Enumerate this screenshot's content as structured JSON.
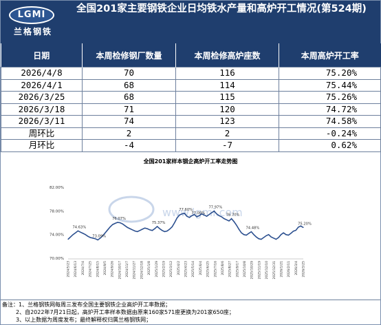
{
  "header": {
    "logo_text": "LGMI",
    "logo_cn": "兰格钢铁",
    "title": "全国201家主要钢铁企业日均铁水产量和高炉开工情况(第524期)"
  },
  "table": {
    "columns": [
      "日期",
      "本周检修钢厂数量",
      "本周检修高炉座数",
      "本周高炉开工率"
    ],
    "rows": [
      {
        "date": "2026/4/8",
        "mills": "70",
        "furnaces": "116",
        "rate": "75.20%"
      },
      {
        "date": "2026/4/1",
        "mills": "68",
        "furnaces": "114",
        "rate": "75.44%"
      },
      {
        "date": "2026/3/25",
        "mills": "68",
        "furnaces": "115",
        "rate": "75.26%"
      },
      {
        "date": "2026/3/18",
        "mills": "71",
        "furnaces": "120",
        "rate": "74.72%"
      },
      {
        "date": "2026/3/11",
        "mills": "74",
        "furnaces": "123",
        "rate": "74.58%"
      }
    ],
    "wow": {
      "label": "周环比",
      "mills": "2",
      "furnaces": "2",
      "rate": "-0.24%"
    },
    "mom": {
      "label": "月环比",
      "mills": "-4",
      "furnaces": "-7",
      "rate": "0.62%"
    }
  },
  "colors": {
    "header_bg": "#1f3e6e",
    "line": "#2b4f8f",
    "up": "#e0141b",
    "down": "#1aa03a"
  },
  "chart_data": {
    "type": "line",
    "title": "全国201家样本钢企高炉开工率走势图",
    "ylim": [
      70,
      82
    ],
    "y_ticks": [
      "82.00%",
      "78.00%",
      "74.00%",
      "70.00%"
    ],
    "y_tick_values": [
      82,
      78,
      74,
      70
    ],
    "x_tick_labels": [
      "2024/5/23",
      "2024/6/13",
      "2024/7/4",
      "2024/7/25",
      "2024/8/15",
      "2024/9/5",
      "2024/9/26",
      "2024/10/17",
      "2024/11/7",
      "2024/11/27",
      "2024/12/18",
      "2025/1/8",
      "2025/1/29",
      "2025/2/19",
      "2025/3/12",
      "2025/4/2",
      "2025/4/23",
      "2025/5/14",
      "2025/6/4",
      "2025/6/25",
      "2025/7/16",
      "2025/8/6",
      "2025/8/27",
      "2025/9/17",
      "2025/10/8",
      "2025/10/29",
      "2025/11/19",
      "2025/12/10",
      "2025/12/31",
      "2026/1/21",
      "2026/2/11",
      "2026/3/4",
      "2026/3/25"
    ],
    "annotations": [
      {
        "index": 4,
        "text": "74.63%"
      },
      {
        "index": 12,
        "text": "73.09%"
      },
      {
        "index": 20,
        "text": "76.07%"
      },
      {
        "index": 36,
        "text": "75.37%"
      },
      {
        "index": 47,
        "text": "77.60%"
      },
      {
        "index": 52,
        "text": "77.00%"
      },
      {
        "index": 59,
        "text": "77.97%"
      },
      {
        "index": 66,
        "text": "76.70%"
      },
      {
        "index": 74,
        "text": "74.48%"
      },
      {
        "index": 95,
        "text": "75.20%"
      }
    ],
    "series": [
      {
        "values": [
          73.2,
          73.6,
          74.0,
          74.3,
          74.63,
          74.4,
          74.2,
          74.0,
          73.7,
          73.5,
          73.4,
          73.3,
          73.09,
          73.4,
          73.8,
          74.3,
          74.8,
          75.3,
          75.7,
          75.9,
          76.07,
          76.0,
          75.8,
          75.5,
          75.2,
          75.0,
          74.8,
          74.6,
          74.5,
          74.7,
          74.9,
          75.1,
          75.0,
          74.8,
          74.7,
          75.0,
          75.37,
          75.0,
          74.7,
          74.5,
          74.6,
          74.9,
          75.3,
          76.0,
          76.8,
          77.3,
          77.5,
          77.6,
          77.1,
          76.9,
          77.2,
          77.4,
          77.0,
          77.2,
          77.5,
          77.3,
          77.1,
          77.4,
          77.7,
          77.97,
          77.5,
          77.2,
          77.0,
          76.7,
          76.5,
          76.3,
          76.7,
          76.2,
          75.6,
          74.9,
          74.3,
          74.0,
          73.9,
          74.2,
          74.48,
          74.0,
          73.6,
          73.3,
          73.2,
          73.5,
          73.8,
          74.0,
          73.6,
          73.4,
          73.2,
          73.5,
          74.0,
          74.3,
          74.0,
          73.9,
          74.2,
          74.58,
          74.72,
          75.26,
          75.44,
          75.2
        ]
      }
    ]
  },
  "watermark": "www.lgmi.com",
  "notes": [
    "备注：1、兰格钢铁网每周三发布全国主要钢铁企业高炉开工率数据；",
    "2、自2022年7月21日起，高炉开工率样本数据由原来160家571座更换为201家650座；",
    "3、以上数据为周度发布；最终解释权归属兰格钢铁网；"
  ]
}
